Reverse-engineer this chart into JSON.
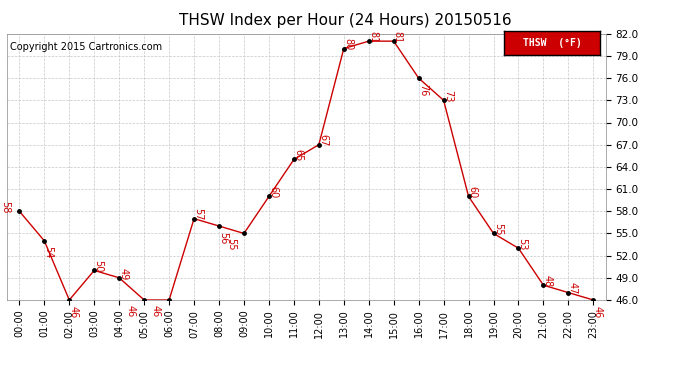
{
  "title": "THSW Index per Hour (24 Hours) 20150516",
  "copyright": "Copyright 2015 Cartronics.com",
  "legend_label": "THSW  (°F)",
  "hours": [
    0,
    1,
    2,
    3,
    4,
    5,
    6,
    7,
    8,
    9,
    10,
    11,
    12,
    13,
    14,
    15,
    16,
    17,
    18,
    19,
    20,
    21,
    22,
    23
  ],
  "values": [
    58,
    54,
    46,
    50,
    49,
    46,
    46,
    57,
    56,
    55,
    60,
    65,
    67,
    80,
    81,
    81,
    76,
    73,
    60,
    55,
    53,
    48,
    47,
    46
  ],
  "ylim": [
    46.0,
    82.0
  ],
  "yticks": [
    46.0,
    49.0,
    52.0,
    55.0,
    58.0,
    61.0,
    64.0,
    67.0,
    70.0,
    73.0,
    76.0,
    79.0,
    82.0
  ],
  "line_color": "#cc0000",
  "marker_color": "#000000",
  "label_color": "#cc0000",
  "bg_color": "#ffffff",
  "grid_color": "#c8c8c8",
  "title_fontsize": 11,
  "copyright_fontsize": 7,
  "label_fontsize": 7,
  "tick_fontsize": 7,
  "ytick_fontsize": 7.5,
  "legend_bg": "#cc0000",
  "legend_fg": "#ffffff"
}
